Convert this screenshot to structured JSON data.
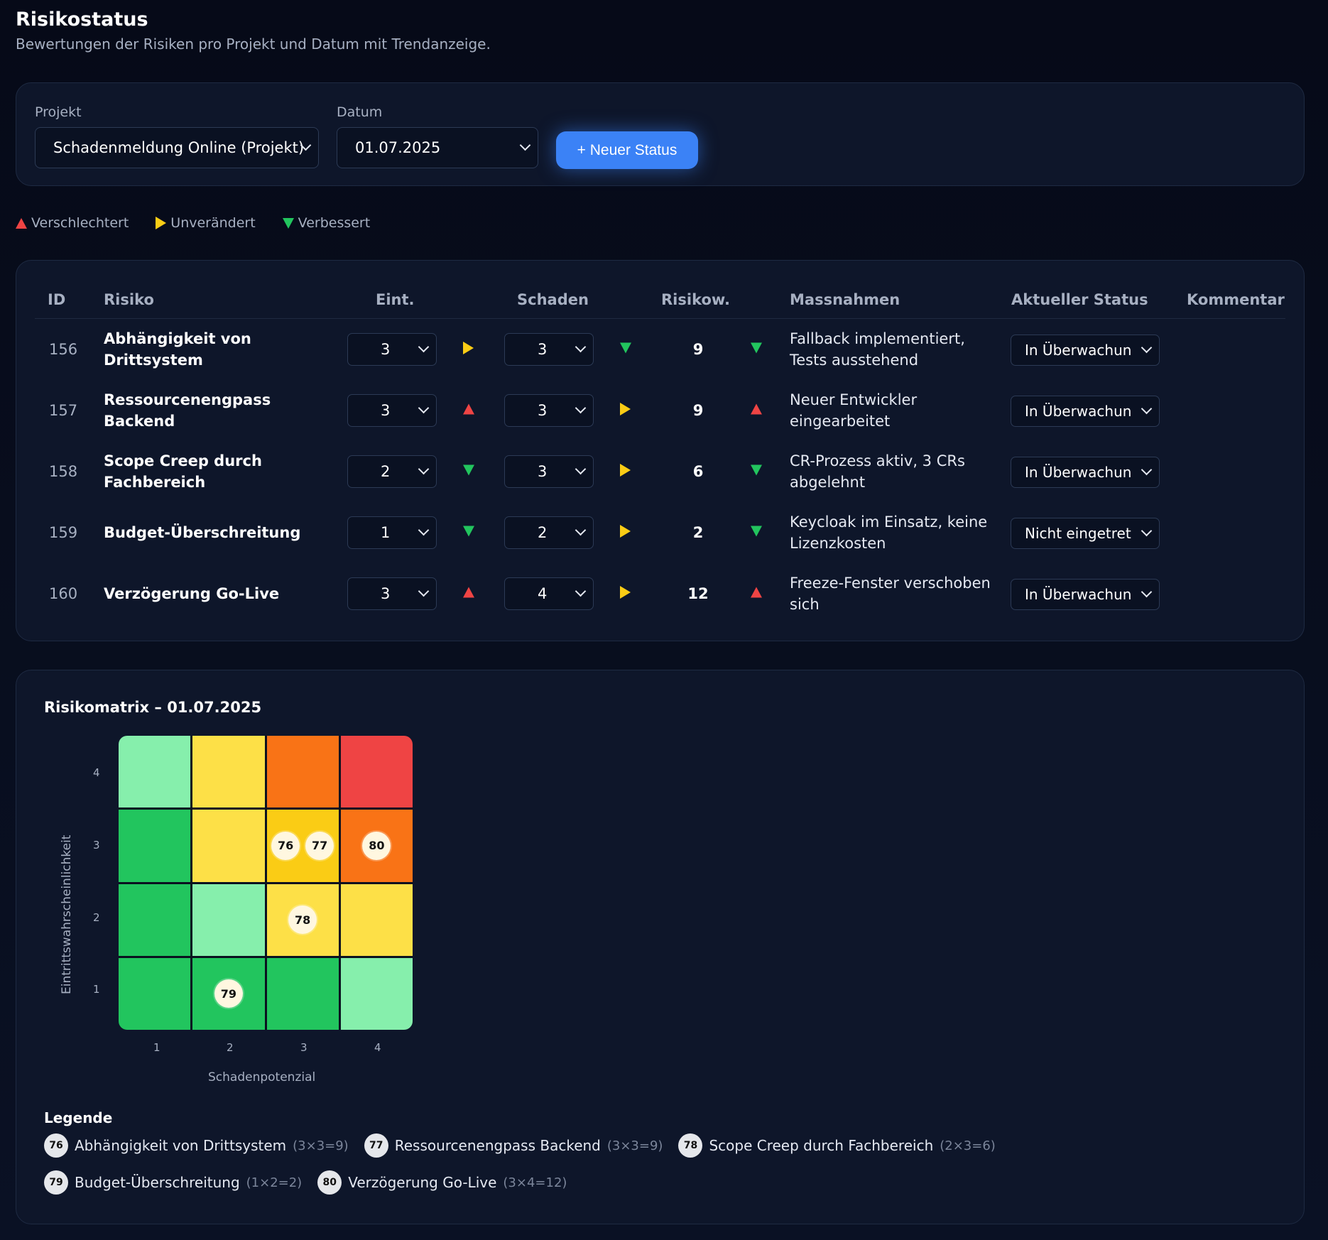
{
  "header": {
    "title": "Risikostatus",
    "subtitle": "Bewertungen der Risiken pro Projekt und Datum mit Trendanzeige."
  },
  "filters": {
    "project_label": "Projekt",
    "project_value": "Schadenmeldung Online (Projekt)",
    "date_label": "Datum",
    "date_value": "01.07.2025",
    "new_status_button": "+ Neuer Status"
  },
  "trend_legend": {
    "worse": "Verschlechtert",
    "same": "Unverändert",
    "better": "Verbessert"
  },
  "table": {
    "headers": {
      "id": "ID",
      "risk": "Risiko",
      "prob": "Eint.",
      "damage": "Schaden",
      "score": "Risikow.",
      "measures": "Massnahmen",
      "status": "Aktueller Status",
      "comment": "Kommentar"
    },
    "rows": [
      {
        "id": "156",
        "risk": "Abhängigkeit von Drittsystem",
        "prob": "3",
        "prob_trend": "same",
        "damage": "3",
        "damage_trend": "better",
        "score": "9",
        "score_trend": "better",
        "measures": "Fallback implementiert, Tests ausstehend",
        "status": "In Überwachung"
      },
      {
        "id": "157",
        "risk": "Ressourcenengpass Backend",
        "prob": "3",
        "prob_trend": "worse",
        "damage": "3",
        "damage_trend": "same",
        "score": "9",
        "score_trend": "worse",
        "measures": "Neuer Entwickler eingearbeitet",
        "status": "In Überwachung"
      },
      {
        "id": "158",
        "risk": "Scope Creep durch Fachbereich",
        "prob": "2",
        "prob_trend": "better",
        "damage": "3",
        "damage_trend": "same",
        "score": "6",
        "score_trend": "better",
        "measures": "CR-Prozess aktiv, 3 CRs abgelehnt",
        "status": "In Überwachung"
      },
      {
        "id": "159",
        "risk": "Budget-Überschreitung",
        "prob": "1",
        "prob_trend": "better",
        "damage": "2",
        "damage_trend": "same",
        "score": "2",
        "score_trend": "better",
        "measures": "Keycloak im Einsatz, keine Lizenzkosten",
        "status": "Nicht eingetreten"
      },
      {
        "id": "160",
        "risk": "Verzögerung Go-Live",
        "prob": "3",
        "prob_trend": "worse",
        "damage": "4",
        "damage_trend": "same",
        "score": "12",
        "score_trend": "worse",
        "measures": "Freeze-Fenster verschoben sich",
        "status": "In Überwachung"
      }
    ]
  },
  "matrix": {
    "title": "Risikomatrix – 01.07.2025",
    "xlabel": "Schadenpotenzial",
    "ylabel": "Eintrittswahrscheinlichkeit",
    "x_ticks": [
      "1",
      "2",
      "3",
      "4"
    ],
    "y_ticks": [
      "4",
      "3",
      "2",
      "1"
    ],
    "cells": [
      [
        {
          "color": "#86efac",
          "chips": []
        },
        {
          "color": "#fde047",
          "chips": []
        },
        {
          "color": "#f97316",
          "chips": []
        },
        {
          "color": "#ef4444",
          "chips": []
        }
      ],
      [
        {
          "color": "#22c55e",
          "chips": []
        },
        {
          "color": "#fde047",
          "chips": []
        },
        {
          "color": "#facc15",
          "chips": [
            "76",
            "77"
          ]
        },
        {
          "color": "#f97316",
          "chips": [
            "80"
          ]
        }
      ],
      [
        {
          "color": "#22c55e",
          "chips": []
        },
        {
          "color": "#86efac",
          "chips": []
        },
        {
          "color": "#fde047",
          "chips": [
            "78"
          ]
        },
        {
          "color": "#fde047",
          "chips": []
        }
      ],
      [
        {
          "color": "#22c55e",
          "chips": []
        },
        {
          "color": "#22c55e",
          "chips": [
            "79"
          ]
        },
        {
          "color": "#22c55e",
          "chips": []
        },
        {
          "color": "#86efac",
          "chips": []
        }
      ]
    ],
    "legend_title": "Legende",
    "legend": [
      {
        "badge": "76",
        "name": "Abhängigkeit von Drittsystem",
        "calc": "(3×3=9)"
      },
      {
        "badge": "77",
        "name": "Ressourcenengpass Backend",
        "calc": "(3×3=9)"
      },
      {
        "badge": "78",
        "name": "Scope Creep durch Fachbereich",
        "calc": "(2×3=6)"
      },
      {
        "badge": "79",
        "name": "Budget-Überschreitung",
        "calc": "(1×2=2)"
      },
      {
        "badge": "80",
        "name": "Verzögerung Go-Live",
        "calc": "(3×4=12)"
      }
    ]
  }
}
